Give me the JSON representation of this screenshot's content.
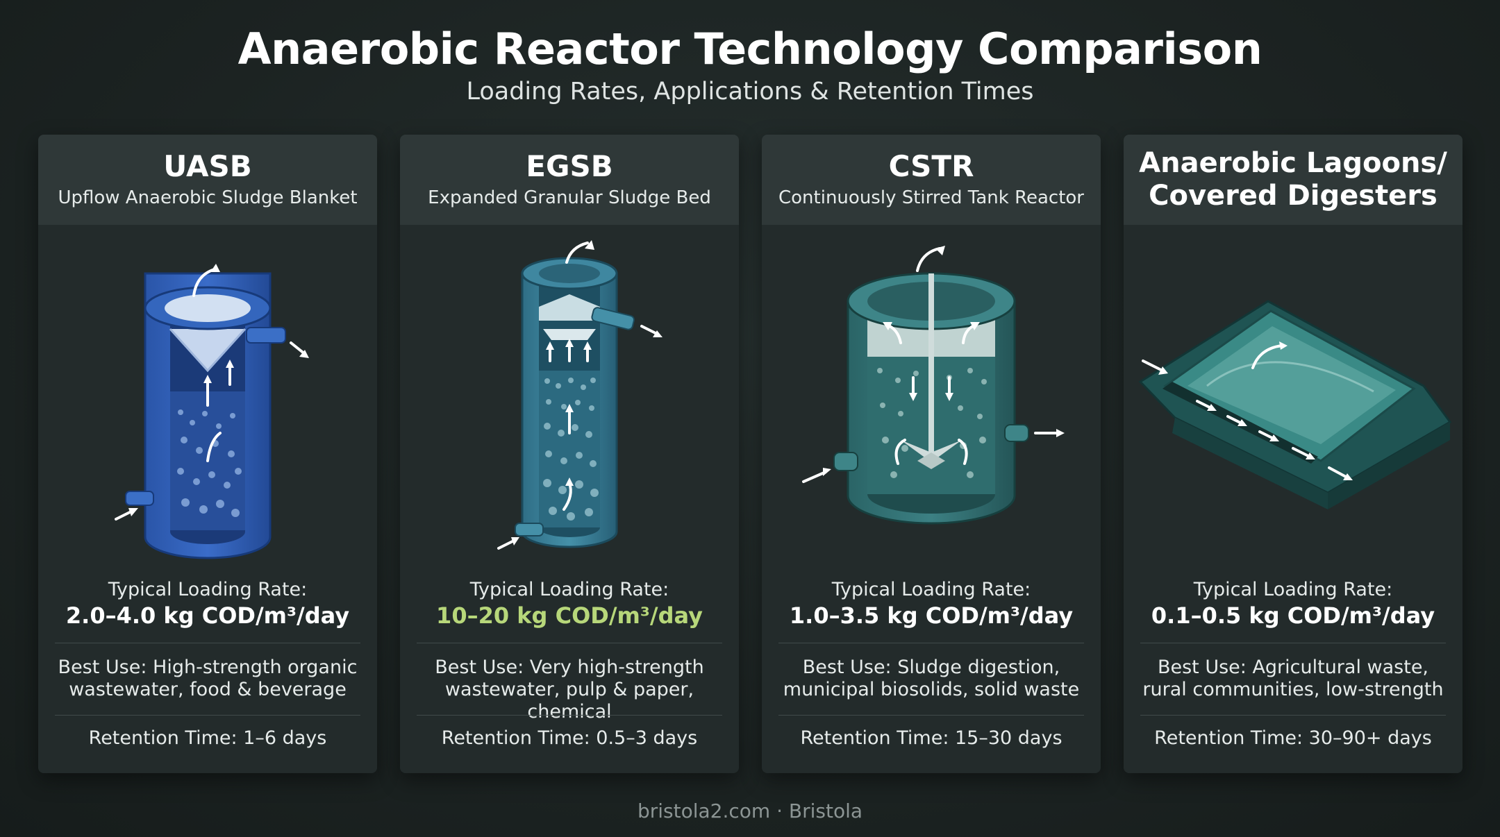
{
  "header": {
    "title": "Anaerobic Reactor Technology Comparison",
    "subtitle": "Loading Rates, Applications & Retention Times"
  },
  "cards": [
    {
      "name": "UASB",
      "full_name": "Upflow Anaerobic Sludge Blanket",
      "loading_label": "Typical Loading Rate:",
      "loading_value": "2.0–4.0 kg COD/m³/day",
      "best_use_line1": "Best Use: High-strength organic",
      "best_use_line2": "wastewater, food & beverage",
      "retention": "Retention Time: 1–6 days",
      "icon": "uasb-reactor-illustration",
      "accent": "#2e5fb0"
    },
    {
      "name": "EGSB",
      "full_name": "Expanded Granular Sludge Bed",
      "loading_label": "Typical Loading Rate:",
      "loading_value": "10–20 kg COD/m³/day",
      "best_use_line1": "Best Use: Very high-strength",
      "best_use_line2": "wastewater, pulp & paper, chemical",
      "retention": "Retention Time: 0.5–3 days",
      "icon": "egsb-reactor-illustration",
      "accent": "#3a7e94",
      "highlight": "#b7d77a"
    },
    {
      "name": "CSTR",
      "full_name": "Continuously Stirred Tank Reactor",
      "loading_label": "Typical Loading Rate:",
      "loading_value": "1.0–3.5 kg COD/m³/day",
      "best_use_line1": "Best Use: Sludge digestion,",
      "best_use_line2": "municipal biosolids, solid waste",
      "retention": "Retention Time: 15–30 days",
      "icon": "cstr-tank-illustration",
      "accent": "#2f6f72"
    },
    {
      "name_line1": "Anaerobic Lagoons/",
      "name_line2": "Covered Digesters",
      "loading_label": "Typical Loading Rate:",
      "loading_value": "0.1–0.5 kg COD/m³/day",
      "best_use_line1": "Best Use: Agricultural waste,",
      "best_use_line2": "rural communities, low-strength",
      "retention": "Retention Time: 30–90+ days",
      "icon": "covered-lagoon-illustration",
      "accent": "#2a6664"
    }
  ],
  "footer": "bristola2.com · Bristola"
}
